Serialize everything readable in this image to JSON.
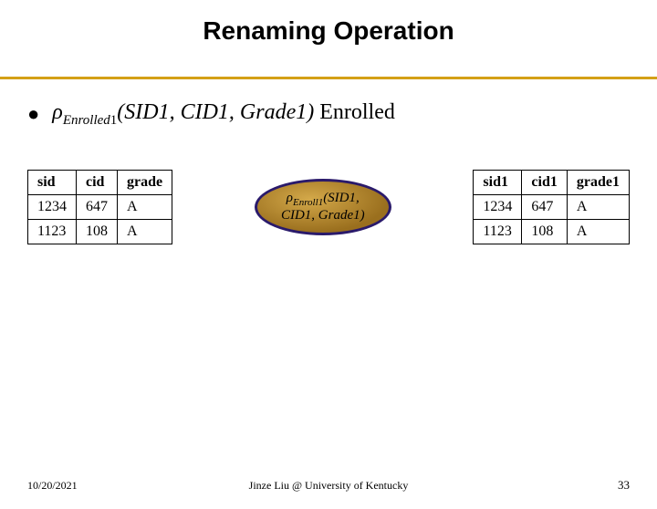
{
  "title": "Renaming Operation",
  "underline_color": "#d4a017",
  "formula": {
    "rho": "ρ",
    "sub_italic": "Enrolled",
    "sub_num": "1",
    "args": "(SID1, CID1, Grade1)",
    "tail": " Enrolled"
  },
  "left_table": {
    "columns": [
      "sid",
      "cid",
      "grade"
    ],
    "rows": [
      [
        "1234",
        "647",
        "A"
      ],
      [
        "1123",
        "108",
        "A"
      ]
    ]
  },
  "right_table": {
    "columns": [
      "sid1",
      "cid1",
      "grade1"
    ],
    "rows": [
      [
        "1234",
        "647",
        "A"
      ],
      [
        "1123",
        "108",
        "A"
      ]
    ]
  },
  "operator": {
    "rho": "ρ",
    "sub_italic": "Enroll",
    "sub_num": "1",
    "line1_tail": "(SID1,",
    "line2": "CID1, Grade1)",
    "border_color": "#2a1a6b",
    "fill_from": "#d4a94a",
    "fill_to": "#9a6f1e"
  },
  "footer": {
    "date": "10/20/2021",
    "center": "Jinze Liu @ University of Kentucky",
    "page": "33"
  }
}
